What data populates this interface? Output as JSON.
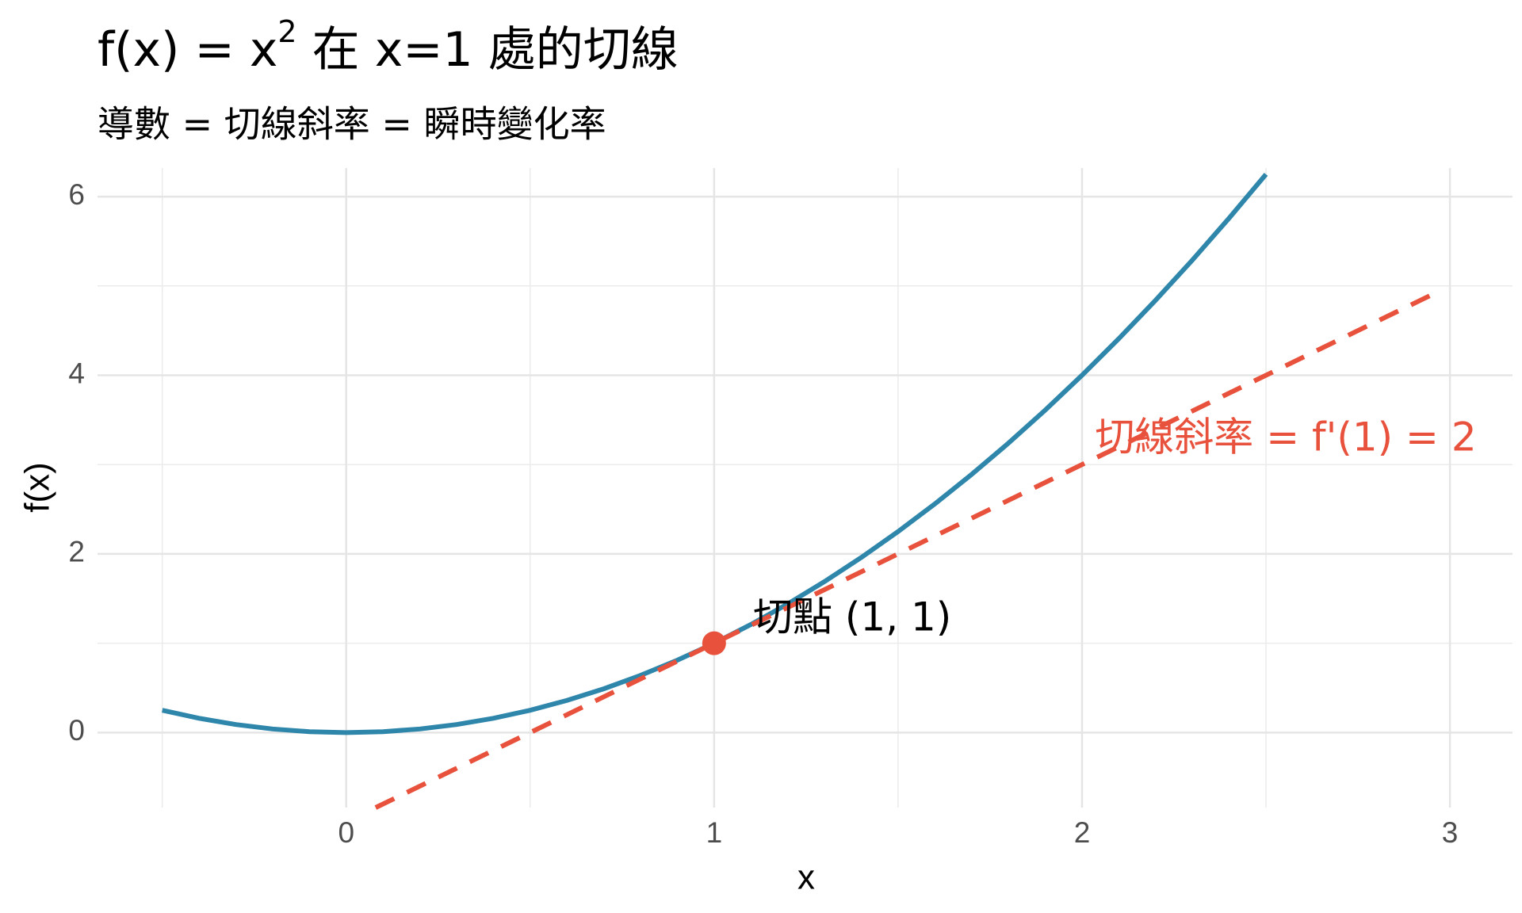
{
  "chart_data": {
    "type": "line",
    "title": {
      "base": "f(x) = x",
      "superscript": "2",
      "rest": " 在 x=1 處的切線"
    },
    "subtitle": "導數 = 切線斜率 = 瞬時變化率",
    "x_label": "x",
    "y_label": "f(x)",
    "xlim": [
      -0.676,
      3.17
    ],
    "ylim": [
      -0.84,
      6.32
    ],
    "xticks": [
      0,
      1,
      2,
      3
    ],
    "yticks": [
      0,
      2,
      4,
      6
    ],
    "x_minor_grid": [
      -0.5,
      0.5,
      1.5,
      2.5
    ],
    "y_minor_grid": [
      1,
      3,
      5
    ],
    "grid": true,
    "series": [
      {
        "name": "f(x)",
        "color": "#2e86ab",
        "style": "solid",
        "x": [
          -0.5,
          -0.4,
          -0.3,
          -0.2,
          -0.1,
          0,
          0.1,
          0.2,
          0.3,
          0.4,
          0.5,
          0.6,
          0.7,
          0.8,
          0.9,
          1,
          1.1,
          1.2,
          1.3,
          1.4,
          1.5,
          1.6,
          1.7,
          1.8,
          1.9,
          2,
          2.1,
          2.2,
          2.3,
          2.4,
          2.5
        ],
        "values": [
          0.25,
          0.16,
          0.09,
          0.04,
          0.01,
          0,
          0.01,
          0.04,
          0.09,
          0.16,
          0.25,
          0.36,
          0.49,
          0.64,
          0.81,
          1,
          1.21,
          1.44,
          1.69,
          1.96,
          2.25,
          2.56,
          2.89,
          3.24,
          3.61,
          4,
          4.41,
          4.84,
          5.29,
          5.76,
          6.25
        ]
      },
      {
        "name": "切線",
        "color": "#e8513c",
        "style": "dashed",
        "x": [
          0.08,
          2.95
        ],
        "values": [
          -0.84,
          4.9
        ]
      },
      {
        "name": "切點",
        "color": "#e8513c",
        "style": "point",
        "x": [
          1
        ],
        "values": [
          1
        ]
      }
    ],
    "annotations": [
      "切點 (1, 1)",
      "切線斜率 = f'(1) = 2"
    ]
  }
}
